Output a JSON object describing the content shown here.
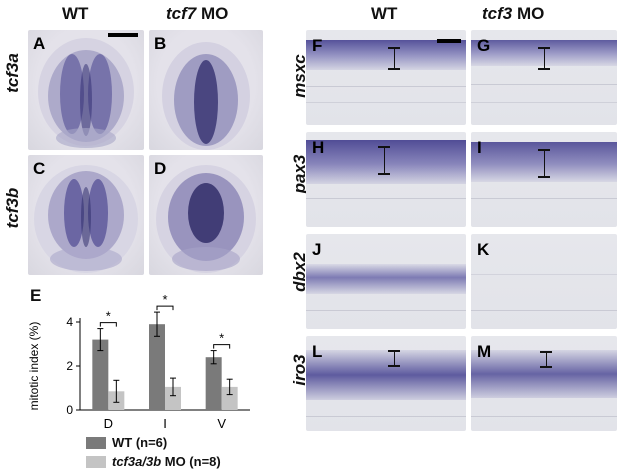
{
  "left_columns": {
    "wt": "WT",
    "mo_gene": "tcf7",
    "mo_suffix": " MO"
  },
  "right_columns": {
    "wt": "WT",
    "mo_gene": "tcf3",
    "mo_suffix": " MO"
  },
  "left_rows": [
    "tcf3a",
    "tcf3b"
  ],
  "right_rows": [
    "msxc",
    "pax3",
    "dbx2",
    "iro3"
  ],
  "panel_labels": {
    "A": "A",
    "B": "B",
    "C": "C",
    "D": "D",
    "E": "E",
    "F": "F",
    "G": "G",
    "H": "H",
    "I": "I",
    "J": "J",
    "K": "K",
    "L": "L",
    "M": "M"
  },
  "chart_data": {
    "type": "bar",
    "ylabel": "mitotic index (%)",
    "ylim": [
      0,
      4
    ],
    "yticks": [
      "0",
      "2",
      "4"
    ],
    "categories": [
      "D",
      "I",
      "V"
    ],
    "series": [
      {
        "name": "WT (n=6)",
        "color": "#7a7a7a",
        "values": [
          3.2,
          3.9,
          2.4
        ],
        "errors": [
          0.5,
          0.55,
          0.3
        ]
      },
      {
        "name": "tcf3a/3b MO (n=8)",
        "color": "#c4c4c4",
        "values": [
          0.85,
          1.05,
          1.05
        ],
        "errors": [
          0.5,
          0.4,
          0.35
        ]
      }
    ],
    "significance": [
      "*",
      "*",
      "*"
    ]
  },
  "legend": {
    "wt": "WT (n=6)",
    "mo_gene": "tcf3a/3b",
    "mo_suffix": " MO (n=8)"
  },
  "colors": {
    "stain": "#3a3480",
    "background": "#e4e4ea"
  }
}
